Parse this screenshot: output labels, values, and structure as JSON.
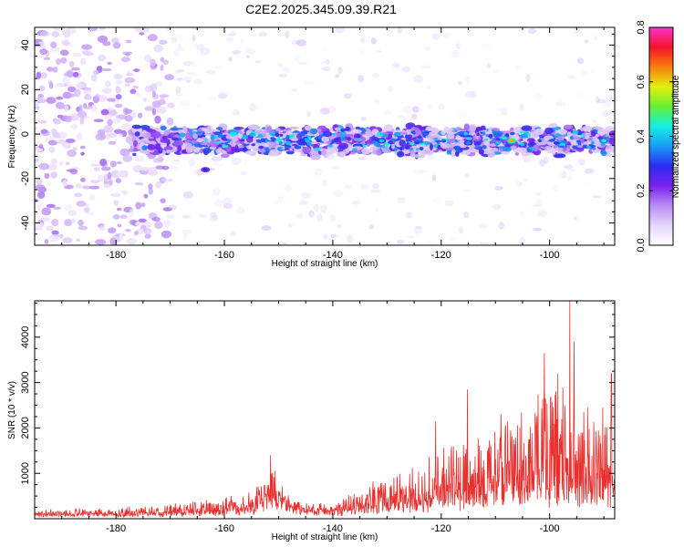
{
  "title": "C2E2.2025.345.09.39.R21",
  "colors": {
    "snr_line": "#e8302e",
    "background": "#ffffff",
    "axis": "#000000",
    "colormap": [
      "#ffffff",
      "#e6d6fb",
      "#b98cf5",
      "#7a22ec",
      "#2a2cf2",
      "#1a9cf6",
      "#13f0e4",
      "#66f033",
      "#e4f00c",
      "#f77d0c",
      "#f2122c",
      "#ff33cc"
    ]
  },
  "chart_data": [
    {
      "type": "heatmap",
      "xlabel": "Height of straight line (km)",
      "ylabel": "Frequency (Hz)",
      "xlim": [
        -195,
        -88
      ],
      "ylim": [
        -50,
        48
      ],
      "xticks": [
        -180,
        -160,
        -140,
        -120,
        -100
      ],
      "yticks": [
        -40,
        -20,
        0,
        20,
        40
      ],
      "band_center_hz": -3,
      "band_halfwidth_hz": 6,
      "band_start_km": -177,
      "colorbar": {
        "label": "Normalized spectral amplitude",
        "range": [
          0,
          0.8
        ],
        "ticks": [
          0.0,
          0.2,
          0.4,
          0.6,
          0.8
        ]
      },
      "hotspots": [
        {
          "x": -107,
          "y": -3,
          "value": 0.62
        },
        {
          "x": -90,
          "y": -3,
          "value": 0.45
        },
        {
          "x": -163.5,
          "y": -16,
          "value": 0.28
        },
        {
          "x": -131,
          "y": -3,
          "value": 0.4
        },
        {
          "x": -115,
          "y": -4,
          "value": 0.35
        },
        {
          "x": -141,
          "y": 0,
          "value": 0.32
        }
      ]
    },
    {
      "type": "line",
      "xlabel": "Height of straight line (km)",
      "ylabel": "SNR (10 * v/v)",
      "xlim": [
        -195,
        -88
      ],
      "ylim": [
        0,
        4800
      ],
      "xticks": [
        -180,
        -160,
        -140,
        -120,
        -100
      ],
      "yticks": [
        1000,
        2000,
        3000,
        4000
      ],
      "envelope": {
        "x": [
          -195,
          -180,
          -170,
          -160,
          -155,
          -151,
          -148,
          -145,
          -140,
          -135,
          -130,
          -125,
          -120,
          -115,
          -110,
          -105,
          -100,
          -96,
          -92,
          -88
        ],
        "baseline": [
          100,
          110,
          130,
          160,
          220,
          500,
          300,
          200,
          160,
          230,
          300,
          380,
          450,
          500,
          560,
          620,
          650,
          700,
          700,
          700
        ],
        "amplitude": [
          100,
          130,
          220,
          300,
          380,
          650,
          300,
          150,
          180,
          450,
          650,
          850,
          1100,
          1400,
          1600,
          1900,
          2300,
          2100,
          1800,
          1900
        ]
      },
      "peaks": [
        {
          "x": -151.5,
          "y": 1400
        },
        {
          "x": -115.2,
          "y": 2850
        },
        {
          "x": -121,
          "y": 2150
        },
        {
          "x": -101,
          "y": 3650
        },
        {
          "x": -98.5,
          "y": 3200
        },
        {
          "x": -96.3,
          "y": 4800
        },
        {
          "x": -95.5,
          "y": 3900
        },
        {
          "x": -88.6,
          "y": 3200
        },
        {
          "x": -90.2,
          "y": 2450
        },
        {
          "x": -109,
          "y": 2300
        }
      ]
    }
  ]
}
